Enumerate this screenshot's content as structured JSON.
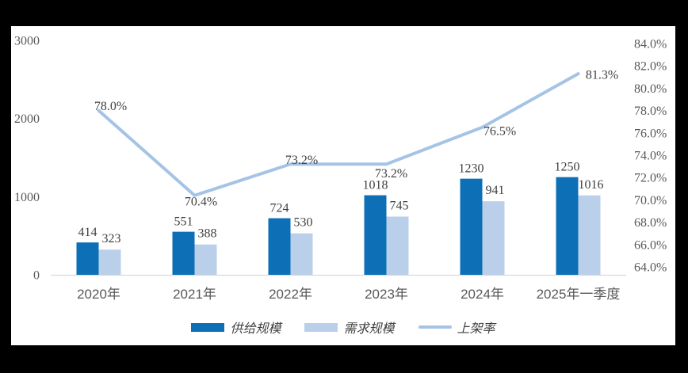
{
  "chart_data": {
    "type": "bar",
    "subtype": "grouped-bars-with-line",
    "title": "",
    "categories": [
      "2020年",
      "2021年",
      "2022年",
      "2023年",
      "2024年",
      "2025年一季度"
    ],
    "series": [
      {
        "name": "供给规模",
        "type": "bar",
        "axis": "left",
        "color": "#0d6fb6",
        "values": [
          414,
          551,
          724,
          1018,
          1230,
          1250
        ]
      },
      {
        "name": "需求规模",
        "type": "bar",
        "axis": "left",
        "color": "#bad0ea",
        "values": [
          323,
          388,
          530,
          745,
          941,
          1016
        ]
      },
      {
        "name": "上架率",
        "type": "line",
        "axis": "right",
        "color": "#a5c4e5",
        "values": [
          78.0,
          70.4,
          73.2,
          73.2,
          76.5,
          81.3
        ],
        "labels": [
          "78.0%",
          "70.4%",
          "73.2%",
          "73.2%",
          "76.5%",
          "81.3%"
        ]
      }
    ],
    "left_axis": {
      "min": 0,
      "max": 3000,
      "labels": [
        "3000",
        "2000",
        "1000",
        "0"
      ]
    },
    "right_axis": {
      "min": 64,
      "max": 84,
      "labels": [
        "84.0%",
        "82.0%",
        "80.0%",
        "78.0%",
        "76.0%",
        "74.0%",
        "72.0%",
        "70.0%",
        "68.0%",
        "66.0%",
        "64.0%"
      ]
    },
    "legend": {
      "position": "bottom",
      "items": [
        "供给规模",
        "需求规模",
        "上架率"
      ]
    },
    "grid": false
  },
  "colors": {
    "frame_background": "#000000",
    "panel_background": "#ffffff",
    "axis_line": "#d9d9d9",
    "tick_text": "#595959",
    "value_text": "#3f3f3f"
  }
}
